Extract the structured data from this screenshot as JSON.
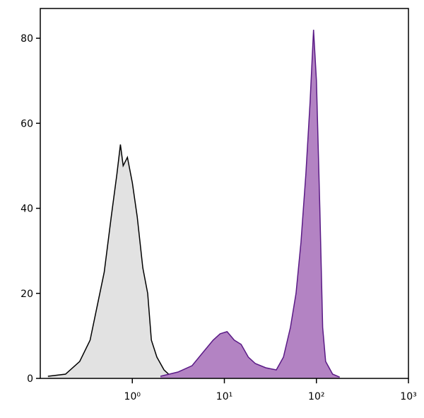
{
  "chart_data": {
    "type": "area",
    "log_x": true,
    "xlim": [
      0.1,
      1000
    ],
    "ylim": [
      0,
      87
    ],
    "xticks": [
      {
        "value": 1,
        "label": "10⁰"
      },
      {
        "value": 10,
        "label": "10¹"
      },
      {
        "value": 100,
        "label": "10²"
      },
      {
        "value": 1000,
        "label": "10³"
      }
    ],
    "yticks": [
      0,
      20,
      40,
      60,
      80
    ],
    "series": [
      {
        "color": "#e2e2e2",
        "line_color": "#000000",
        "x": [
          0.121,
          0.188,
          0.268,
          0.348,
          0.415,
          0.495,
          0.59,
          0.679,
          0.742,
          0.796,
          0.885,
          1.0,
          1.13,
          1.3,
          1.47,
          1.61,
          1.85,
          2.21,
          2.63
        ],
        "values": [
          0.5,
          1,
          4,
          9,
          17,
          25,
          38,
          48,
          55,
          50,
          52,
          46,
          38,
          26,
          20,
          9,
          5,
          2,
          0.5
        ]
      },
      {
        "color": "#b383c3",
        "line_color": "#5a1a86",
        "x": [
          2.02,
          3.13,
          4.46,
          5.8,
          7.55,
          9.0,
          10.7,
          12.8,
          15.2,
          18.2,
          21.7,
          28.2,
          36.7,
          43.8,
          52.2,
          60.1,
          67.9,
          76.8,
          85.3,
          93.1,
          100,
          109,
          117,
          126,
          150,
          179
        ],
        "values": [
          0.5,
          1.5,
          3,
          6,
          9,
          10.5,
          11,
          9,
          8,
          5,
          3.5,
          2.5,
          2,
          5,
          12,
          20,
          32,
          48,
          65,
          82,
          70,
          40,
          12,
          4,
          1,
          0.3
        ]
      }
    ]
  }
}
